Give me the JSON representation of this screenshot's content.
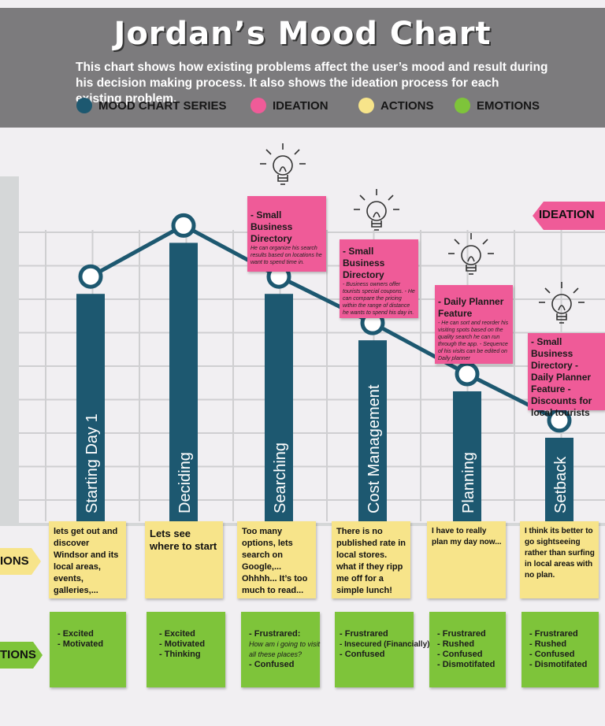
{
  "header": {
    "title": "Jordan’s Mood Chart",
    "subtitle": "This chart shows how existing problems affect the user’s mood and result during his decision making process. It also shows the ideation process for each existing problem."
  },
  "legend": [
    {
      "label": "MOOD CHART SERIES",
      "color": "#1d5870"
    },
    {
      "label": "IDEATION",
      "color": "#ef5b98"
    },
    {
      "label": "ACTIONS",
      "color": "#f7e48a"
    },
    {
      "label": "EMOTIONS",
      "color": "#7ec43a"
    }
  ],
  "row_tags": {
    "ideation": "IDEATION",
    "actions": "IONS",
    "emotions": "TIONS"
  },
  "colors": {
    "bar": "#1d5870",
    "line": "#1d5870",
    "grid": "#cfcfd1",
    "ideation": "#ef5b98",
    "actions": "#f7e48a",
    "emotions": "#7ec43a"
  },
  "chart_data": {
    "type": "bar",
    "categories": [
      "Starting Day 1",
      "Deciding",
      "Searching",
      "Cost Management",
      "Planning",
      "Setback"
    ],
    "values": [
      4.9,
      6.0,
      4.9,
      3.9,
      2.8,
      1.8
    ],
    "ylim": [
      0,
      7.5
    ],
    "grid": true,
    "series": [
      {
        "values": [
          4.9,
          6.0,
          4.9,
          3.9,
          2.8,
          1.8
        ]
      }
    ]
  },
  "actions": [
    {
      "text": "lets get out and discover Windsor and its local areas, events, galleries,..."
    },
    {
      "text": "Lets see where to start"
    },
    {
      "text": "Too many options, lets search on Google,... Ohhhh... It’s too much to read..."
    },
    {
      "text": "There is no published rate in local stores. what if they ripp me off for a simple lunch!"
    },
    {
      "text": "I have to really plan my day now..."
    },
    {
      "text": "I think its better to go sightseeing rather than surfing in local areas with no plan."
    }
  ],
  "emotions": [
    {
      "lines": [
        "- Excited",
        "- Motivated"
      ]
    },
    {
      "lines": [
        "- Excited",
        "- Motivated",
        "- Thinking"
      ]
    },
    {
      "lines": [
        "- Frustrared:",
        "How am i going to visit",
        "all these places?",
        "- Confused"
      ]
    },
    {
      "lines": [
        "- Frustrared",
        "- Insecured (Financially)",
        "- Confused"
      ]
    },
    {
      "lines": [
        "- Frustrared",
        "- Rushed",
        "- Confused",
        "- Dismotifated"
      ]
    },
    {
      "lines": [
        "- Frustrared",
        "- Rushed",
        "- Confused",
        "- Dismotifated"
      ]
    }
  ],
  "ideation": [
    {
      "title": "- Small Business Directory",
      "body": "He can organize his search results based on locations he want to spend time in."
    },
    {
      "title": "- Small Business Directory",
      "body": "- Business owners offer tourists special coupons. - He can compare the pricing within the range of distance he wants to spend his day in."
    },
    {
      "title": "- Daily Planner Feature",
      "body": "- He can sort and reorder his visiting spots based on the quality search he can run through the app. - Sequence of his visits can be edited on Daily planner"
    },
    {
      "title": "- Small Business Directory - Daily Planner Feature - Discounts for local tourists",
      "body": ""
    }
  ]
}
